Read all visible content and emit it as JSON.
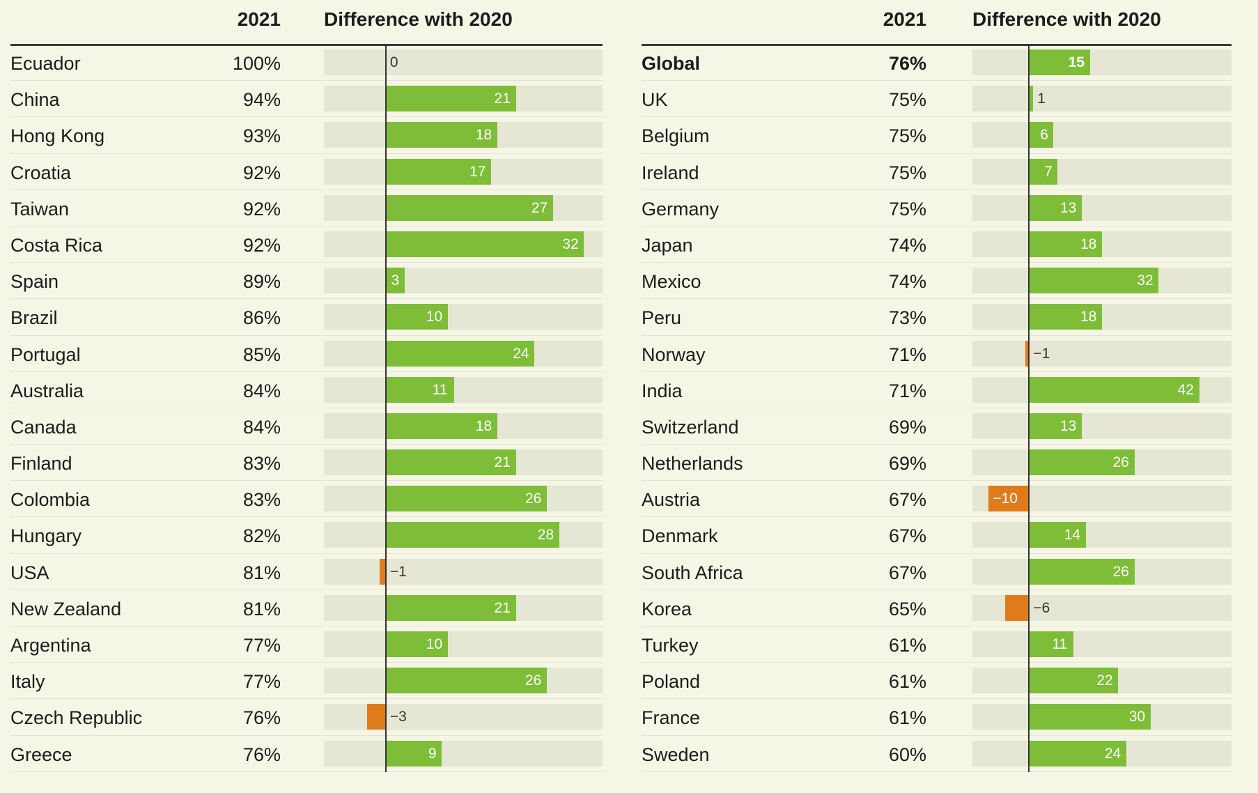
{
  "chart_data": {
    "type": "table",
    "columns": [
      "",
      "2021",
      "Difference with 2020"
    ],
    "colors": {
      "positive": "#7dbd38",
      "negative": "#e07b1b",
      "track": "#e6e6d4",
      "background": "#f5f6e5"
    },
    "panels": [
      {
        "header": {
          "year": "2021",
          "diff": "Difference with 2020"
        },
        "diff_range": [
          -10,
          35
        ],
        "rows": [
          {
            "country": "Ecuador",
            "pct": "100%",
            "diff": 0,
            "label": "0"
          },
          {
            "country": "China",
            "pct": "94%",
            "diff": 21,
            "label": "21"
          },
          {
            "country": "Hong Kong",
            "pct": "93%",
            "diff": 18,
            "label": "18"
          },
          {
            "country": "Croatia",
            "pct": "92%",
            "diff": 17,
            "label": "17"
          },
          {
            "country": "Taiwan",
            "pct": "92%",
            "diff": 27,
            "label": "27"
          },
          {
            "country": "Costa Rica",
            "pct": "92%",
            "diff": 32,
            "label": "32"
          },
          {
            "country": "Spain",
            "pct": "89%",
            "diff": 3,
            "label": "3"
          },
          {
            "country": "Brazil",
            "pct": "86%",
            "diff": 10,
            "label": "10"
          },
          {
            "country": "Portugal",
            "pct": "85%",
            "diff": 24,
            "label": "24"
          },
          {
            "country": "Australia",
            "pct": "84%",
            "diff": 11,
            "label": "11"
          },
          {
            "country": "Canada",
            "pct": "84%",
            "diff": 18,
            "label": "18"
          },
          {
            "country": "Finland",
            "pct": "83%",
            "diff": 21,
            "label": "21"
          },
          {
            "country": "Colombia",
            "pct": "83%",
            "diff": 26,
            "label": "26"
          },
          {
            "country": "Hungary",
            "pct": "82%",
            "diff": 28,
            "label": "28"
          },
          {
            "country": "USA",
            "pct": "81%",
            "diff": -1,
            "label": "−1"
          },
          {
            "country": "New Zealand",
            "pct": "81%",
            "diff": 21,
            "label": "21"
          },
          {
            "country": "Argentina",
            "pct": "77%",
            "diff": 10,
            "label": "10"
          },
          {
            "country": "Italy",
            "pct": "77%",
            "diff": 26,
            "label": "26"
          },
          {
            "country": "Czech Republic",
            "pct": "76%",
            "diff": -3,
            "label": "−3"
          },
          {
            "country": "Greece",
            "pct": "76%",
            "diff": 9,
            "label": "9"
          }
        ]
      },
      {
        "header": {
          "year": "2021",
          "diff": "Difference with 2020"
        },
        "diff_range": [
          -14,
          50
        ],
        "rows": [
          {
            "country": "Global",
            "pct": "76%",
            "diff": 15,
            "label": "15",
            "bold": true
          },
          {
            "country": "UK",
            "pct": "75%",
            "diff": 1,
            "label": "1"
          },
          {
            "country": "Belgium",
            "pct": "75%",
            "diff": 6,
            "label": "6"
          },
          {
            "country": "Ireland",
            "pct": "75%",
            "diff": 7,
            "label": "7"
          },
          {
            "country": "Germany",
            "pct": "75%",
            "diff": 13,
            "label": "13"
          },
          {
            "country": "Japan",
            "pct": "74%",
            "diff": 18,
            "label": "18"
          },
          {
            "country": "Mexico",
            "pct": "74%",
            "diff": 32,
            "label": "32"
          },
          {
            "country": "Peru",
            "pct": "73%",
            "diff": 18,
            "label": "18"
          },
          {
            "country": "Norway",
            "pct": "71%",
            "diff": -1,
            "label": "−1"
          },
          {
            "country": "India",
            "pct": "71%",
            "diff": 42,
            "label": "42"
          },
          {
            "country": "Switzerland",
            "pct": "69%",
            "diff": 13,
            "label": "13"
          },
          {
            "country": "Netherlands",
            "pct": "69%",
            "diff": 26,
            "label": "26"
          },
          {
            "country": "Austria",
            "pct": "67%",
            "diff": -10,
            "label": "−10"
          },
          {
            "country": "Denmark",
            "pct": "67%",
            "diff": 14,
            "label": "14"
          },
          {
            "country": "South Africa",
            "pct": "67%",
            "diff": 26,
            "label": "26"
          },
          {
            "country": "Korea",
            "pct": "65%",
            "diff": -6,
            "label": "−6"
          },
          {
            "country": "Turkey",
            "pct": "61%",
            "diff": 11,
            "label": "11"
          },
          {
            "country": "Poland",
            "pct": "61%",
            "diff": 22,
            "label": "22"
          },
          {
            "country": "France",
            "pct": "61%",
            "diff": 30,
            "label": "30"
          },
          {
            "country": "Sweden",
            "pct": "60%",
            "diff": 24,
            "label": "24"
          }
        ]
      }
    ]
  }
}
